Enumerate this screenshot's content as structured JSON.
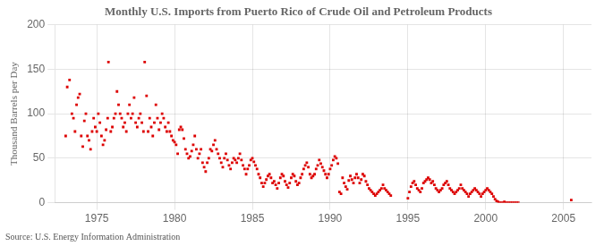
{
  "chart_data": {
    "type": "scatter",
    "title": "Monthly U.S. Imports from Puerto Rico of Crude Oil and Petroleum Products",
    "ylabel": "Thousand Barrels per Day",
    "source": "Source: U.S. Energy Information Administration",
    "color": "#dd0000",
    "marker": "square",
    "grid": true,
    "xlim": [
      1972.3,
      2006.8
    ],
    "xticks": [
      1975,
      1980,
      1985,
      1990,
      1995,
      2000,
      2005
    ],
    "ylim": [
      0,
      200
    ],
    "yticks": [
      0,
      50,
      100,
      150,
      200
    ],
    "x": [
      1973.0,
      1973.1,
      1973.25,
      1973.4,
      1973.5,
      1973.6,
      1973.7,
      1973.8,
      1973.9,
      1974.0,
      1974.1,
      1974.2,
      1974.3,
      1974.4,
      1974.5,
      1974.6,
      1974.7,
      1974.8,
      1974.9,
      1975.0,
      1975.1,
      1975.2,
      1975.3,
      1975.4,
      1975.5,
      1975.6,
      1975.7,
      1975.75,
      1975.9,
      1976.0,
      1976.1,
      1976.2,
      1976.3,
      1976.4,
      1976.5,
      1976.6,
      1976.7,
      1976.8,
      1976.9,
      1977.0,
      1977.1,
      1977.2,
      1977.3,
      1977.4,
      1977.5,
      1977.6,
      1977.7,
      1977.8,
      1977.9,
      1978.0,
      1978.08,
      1978.2,
      1978.3,
      1978.4,
      1978.5,
      1978.6,
      1978.7,
      1978.8,
      1978.9,
      1979.0,
      1979.1,
      1979.2,
      1979.3,
      1979.4,
      1979.5,
      1979.6,
      1979.7,
      1979.8,
      1979.9,
      1980.0,
      1980.1,
      1980.2,
      1980.3,
      1980.4,
      1980.5,
      1980.6,
      1980.7,
      1980.8,
      1980.9,
      1981.0,
      1981.1,
      1981.2,
      1981.3,
      1981.4,
      1981.5,
      1981.6,
      1981.7,
      1981.8,
      1981.9,
      1982.0,
      1982.1,
      1982.2,
      1982.3,
      1982.4,
      1982.5,
      1982.6,
      1982.7,
      1982.8,
      1982.9,
      1983.0,
      1983.1,
      1983.2,
      1983.3,
      1983.4,
      1983.5,
      1983.6,
      1983.7,
      1983.8,
      1983.9,
      1984.0,
      1984.1,
      1984.2,
      1984.3,
      1984.4,
      1984.5,
      1984.6,
      1984.7,
      1984.8,
      1984.9,
      1985.0,
      1985.1,
      1985.2,
      1985.3,
      1985.4,
      1985.5,
      1985.6,
      1985.7,
      1985.8,
      1985.9,
      1986.0,
      1986.1,
      1986.2,
      1986.3,
      1986.4,
      1986.5,
      1986.6,
      1986.7,
      1986.8,
      1986.9,
      1987.0,
      1987.1,
      1987.2,
      1987.3,
      1987.4,
      1987.5,
      1987.6,
      1987.7,
      1987.8,
      1987.9,
      1988.0,
      1988.1,
      1988.2,
      1988.3,
      1988.4,
      1988.5,
      1988.6,
      1988.7,
      1988.8,
      1988.9,
      1989.0,
      1989.1,
      1989.2,
      1989.3,
      1989.4,
      1989.5,
      1989.6,
      1989.7,
      1989.8,
      1989.9,
      1990.0,
      1990.1,
      1990.2,
      1990.3,
      1990.4,
      1990.5,
      1990.6,
      1990.7,
      1990.8,
      1990.9,
      1991.0,
      1991.1,
      1991.2,
      1991.3,
      1991.4,
      1991.5,
      1991.6,
      1991.7,
      1991.8,
      1991.9,
      1992.0,
      1992.1,
      1992.2,
      1992.3,
      1992.4,
      1992.5,
      1992.6,
      1992.7,
      1992.8,
      1992.9,
      1993.0,
      1993.1,
      1993.2,
      1993.3,
      1993.4,
      1993.5,
      1993.6,
      1993.7,
      1993.8,
      1993.9,
      1995.0,
      1995.1,
      1995.2,
      1995.3,
      1995.4,
      1995.5,
      1995.6,
      1995.7,
      1995.8,
      1995.9,
      1996.0,
      1996.1,
      1996.2,
      1996.3,
      1996.4,
      1996.5,
      1996.6,
      1996.7,
      1996.8,
      1996.9,
      1997.0,
      1997.1,
      1997.2,
      1997.3,
      1997.4,
      1997.5,
      1997.6,
      1997.7,
      1997.8,
      1997.9,
      1998.0,
      1998.1,
      1998.2,
      1998.3,
      1998.4,
      1998.5,
      1998.6,
      1998.7,
      1998.8,
      1998.9,
      1999.0,
      1999.1,
      1999.2,
      1999.3,
      1999.4,
      1999.5,
      1999.6,
      1999.7,
      1999.8,
      1999.9,
      2000.0,
      2000.1,
      2000.2,
      2000.3,
      2000.4,
      2000.5,
      2000.6,
      2000.7,
      2000.8,
      2000.9,
      2001.0,
      2001.1,
      2001.2,
      2001.3,
      2001.4,
      2001.5,
      2001.6,
      2001.7,
      2001.8,
      2001.9,
      2002.0,
      2002.1,
      2005.5
    ],
    "values": [
      75,
      130,
      138,
      100,
      95,
      80,
      110,
      118,
      122,
      75,
      63,
      92,
      100,
      75,
      70,
      60,
      80,
      95,
      85,
      80,
      100,
      90,
      75,
      65,
      70,
      82,
      95,
      158,
      80,
      85,
      95,
      100,
      125,
      110,
      100,
      95,
      85,
      90,
      80,
      100,
      110,
      95,
      100,
      118,
      90,
      85,
      95,
      100,
      90,
      80,
      158,
      120,
      80,
      95,
      85,
      75,
      90,
      110,
      95,
      82,
      90,
      100,
      95,
      85,
      80,
      90,
      80,
      75,
      70,
      68,
      65,
      55,
      82,
      85,
      82,
      72,
      60,
      55,
      50,
      52,
      58,
      65,
      75,
      60,
      50,
      55,
      60,
      45,
      40,
      35,
      45,
      50,
      60,
      58,
      65,
      70,
      60,
      55,
      50,
      45,
      40,
      50,
      55,
      48,
      42,
      38,
      45,
      50,
      48,
      45,
      50,
      55,
      48,
      42,
      38,
      32,
      38,
      42,
      48,
      50,
      46,
      42,
      38,
      32,
      28,
      22,
      18,
      22,
      26,
      30,
      32,
      28,
      22,
      24,
      20,
      16,
      22,
      28,
      32,
      30,
      24,
      20,
      17,
      22,
      28,
      32,
      30,
      24,
      20,
      22,
      28,
      32,
      38,
      42,
      45,
      40,
      32,
      28,
      30,
      32,
      38,
      42,
      48,
      44,
      40,
      36,
      32,
      28,
      32,
      38,
      42,
      48,
      52,
      50,
      44,
      12,
      10,
      28,
      22,
      18,
      15,
      25,
      30,
      26,
      22,
      28,
      32,
      28,
      22,
      26,
      32,
      30,
      24,
      20,
      16,
      14,
      12,
      10,
      8,
      10,
      12,
      14,
      16,
      20,
      16,
      14,
      12,
      10,
      8,
      5,
      12,
      18,
      22,
      24,
      20,
      16,
      14,
      12,
      16,
      22,
      24,
      26,
      28,
      26,
      22,
      24,
      20,
      16,
      14,
      12,
      14,
      16,
      20,
      22,
      24,
      20,
      16,
      14,
      12,
      10,
      12,
      14,
      16,
      20,
      16,
      14,
      12,
      10,
      7,
      10,
      12,
      14,
      16,
      14,
      12,
      10,
      7,
      10,
      12,
      14,
      16,
      14,
      12,
      10,
      7,
      4,
      2,
      1,
      0,
      0,
      0,
      1,
      0,
      0,
      0,
      0,
      0,
      0,
      0,
      0,
      0,
      3
    ]
  }
}
